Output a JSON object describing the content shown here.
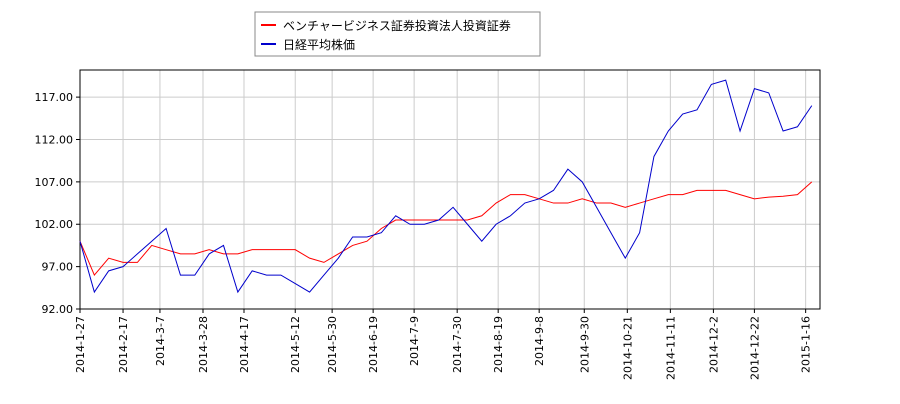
{
  "chart_data": {
    "type": "line",
    "x": [
      "2014-1-27",
      "2014-2-3",
      "2014-2-10",
      "2014-2-17",
      "2014-2-24",
      "2014-3-3",
      "2014-3-10",
      "2014-3-17",
      "2014-3-24",
      "2014-3-31",
      "2014-4-7",
      "2014-4-14",
      "2014-4-21",
      "2014-4-28",
      "2014-5-5",
      "2014-5-12",
      "2014-5-19",
      "2014-5-26",
      "2014-6-2",
      "2014-6-9",
      "2014-6-16",
      "2014-6-23",
      "2014-6-30",
      "2014-7-7",
      "2014-7-14",
      "2014-7-21",
      "2014-7-28",
      "2014-8-4",
      "2014-8-11",
      "2014-8-18",
      "2014-8-25",
      "2014-9-1",
      "2014-9-8",
      "2014-9-15",
      "2014-9-22",
      "2014-9-29",
      "2014-10-6",
      "2014-10-13",
      "2014-10-20",
      "2014-10-27",
      "2014-11-3",
      "2014-11-10",
      "2014-11-17",
      "2014-11-24",
      "2014-12-1",
      "2014-12-8",
      "2014-12-15",
      "2014-12-22",
      "2014-12-29",
      "2015-1-5",
      "2015-1-12",
      "2015-1-19"
    ],
    "series": [
      {
        "name": "ベンチャービジネス証券投資法人投資証券",
        "color": "#ff0000",
        "values": [
          100,
          96,
          98,
          97.5,
          97.5,
          99.5,
          99,
          98.5,
          98.5,
          99,
          98.5,
          98.5,
          99,
          99,
          99,
          99,
          98,
          97.5,
          98.5,
          99.5,
          100,
          101.5,
          102.5,
          102.5,
          102.5,
          102.5,
          102.5,
          102.5,
          103,
          104.5,
          105.5,
          105.5,
          105,
          104.5,
          104.5,
          105,
          104.5,
          104.5,
          104,
          104.5,
          105,
          105.5,
          105.5,
          106,
          106,
          106,
          105.5,
          105,
          105.2,
          105.3,
          105.5,
          107
        ]
      },
      {
        "name": "日経平均株価",
        "color": "#0000cc",
        "values": [
          100,
          94,
          96.5,
          97,
          98.5,
          100,
          101.5,
          96,
          96,
          98.5,
          99.5,
          94,
          96.5,
          96,
          96,
          95,
          94,
          96,
          98,
          100.5,
          100.5,
          101,
          103,
          102,
          102,
          102.5,
          104,
          102,
          100,
          102,
          103,
          104.5,
          105,
          106,
          108.5,
          107,
          104,
          101,
          98,
          101,
          110,
          113,
          115,
          115.5,
          118.5,
          119,
          113,
          118,
          117.5,
          113,
          113.5,
          116
        ]
      }
    ],
    "xlim": [
      "2014-1-27",
      "2015-1-23"
    ],
    "xticks": [
      "2014-1-27",
      "2014-2-17",
      "2014-3-7",
      "2014-3-28",
      "2014-4-17",
      "2014-5-12",
      "2014-5-30",
      "2014-6-19",
      "2014-7-9",
      "2014-7-30",
      "2014-8-19",
      "2014-9-8",
      "2014-9-30",
      "2014-10-21",
      "2014-11-11",
      "2014-12-2",
      "2014-12-22",
      "2015-1-16"
    ],
    "ylim": [
      92,
      120.2
    ],
    "yticks": [
      {
        "value": 92,
        "label": "92.00"
      },
      {
        "value": 97,
        "label": "97.00"
      },
      {
        "value": 102,
        "label": "102.00"
      },
      {
        "value": 107,
        "label": "107.00"
      },
      {
        "value": 112,
        "label": "112.00"
      },
      {
        "value": 117,
        "label": "117.00"
      }
    ],
    "grid": true,
    "legend": "top"
  }
}
